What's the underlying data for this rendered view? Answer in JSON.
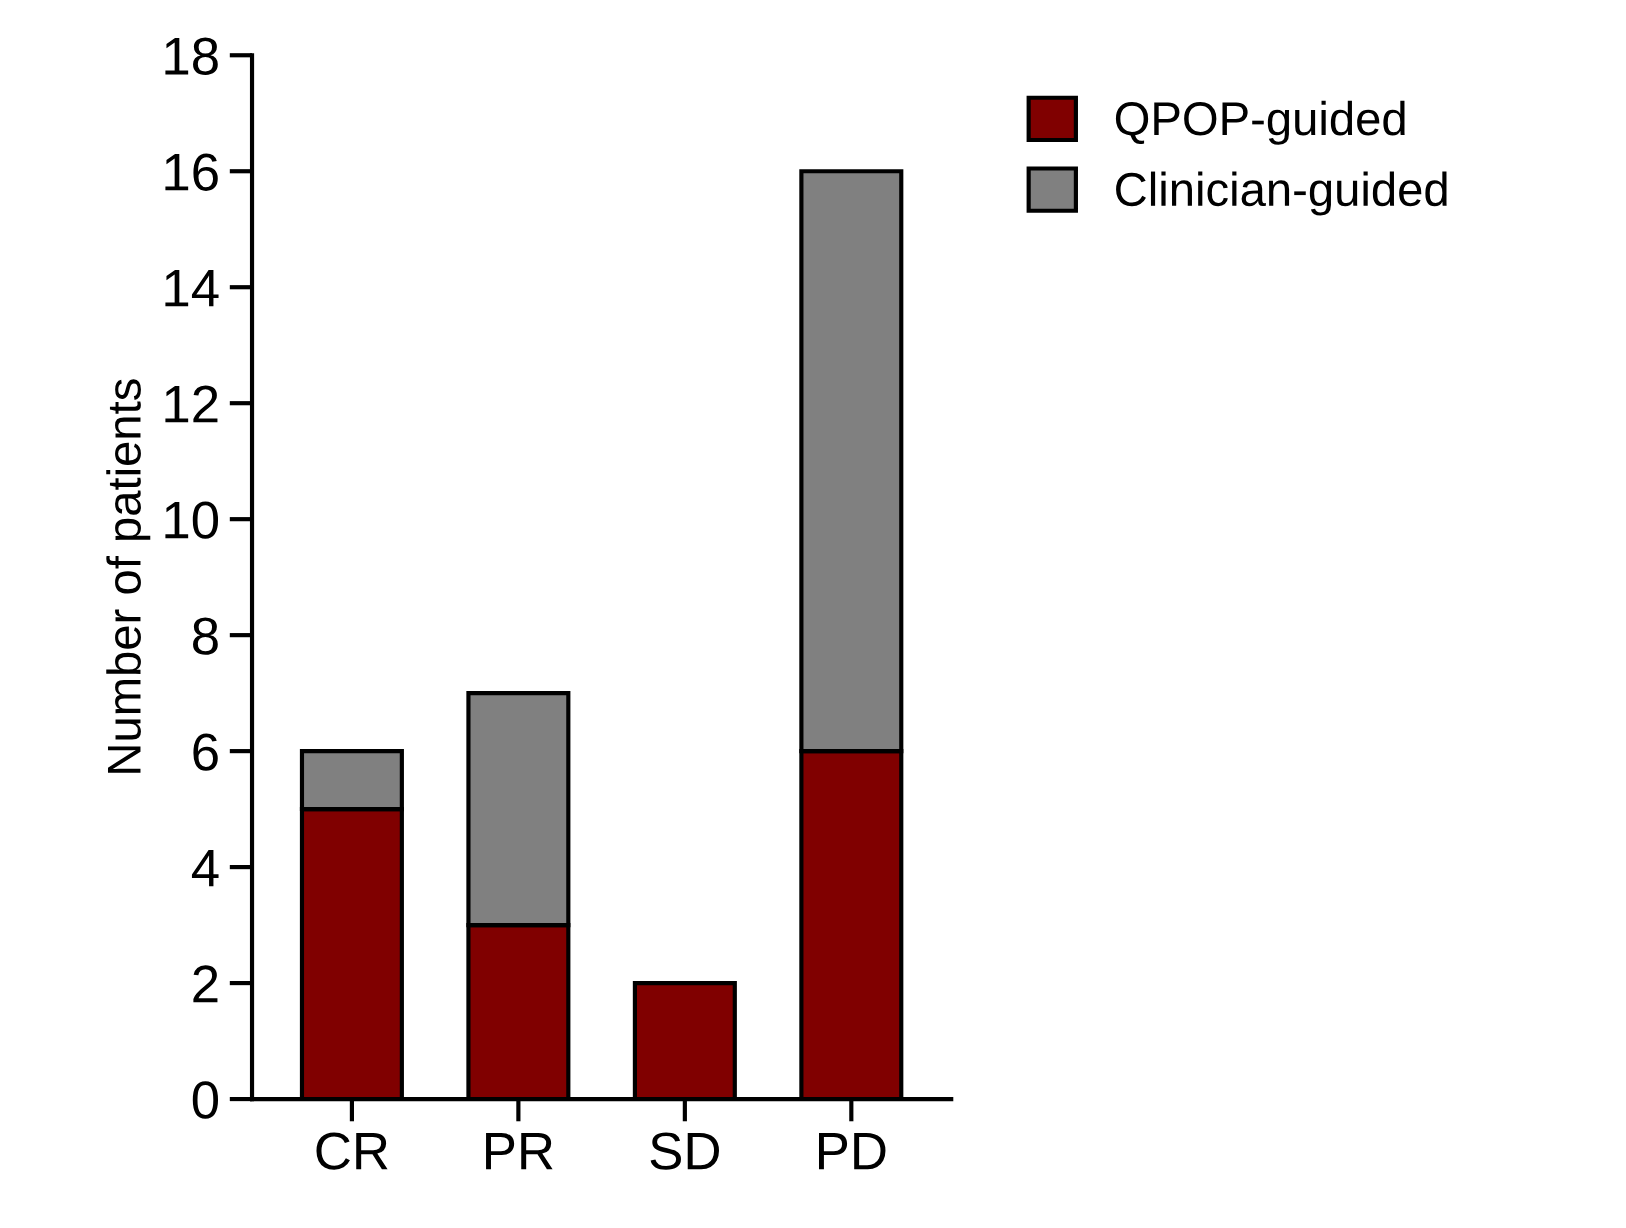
{
  "chart_data": {
    "type": "bar",
    "ylabel": "Number of patients",
    "categories": [
      "CR",
      "PR",
      "SD",
      "PD"
    ],
    "series": [
      {
        "name": "QPOP-guided",
        "color": "#800000",
        "values": [
          5,
          3,
          2,
          6
        ]
      },
      {
        "name": "Clinician-guided",
        "color": "#808080",
        "values": [
          1,
          4,
          0,
          10
        ]
      }
    ],
    "stacked": true,
    "ylim": [
      0,
      18
    ],
    "yticks": [
      0,
      2,
      4,
      6,
      8,
      10,
      12,
      14,
      16,
      18
    ],
    "grid": false,
    "legend": "top right"
  }
}
